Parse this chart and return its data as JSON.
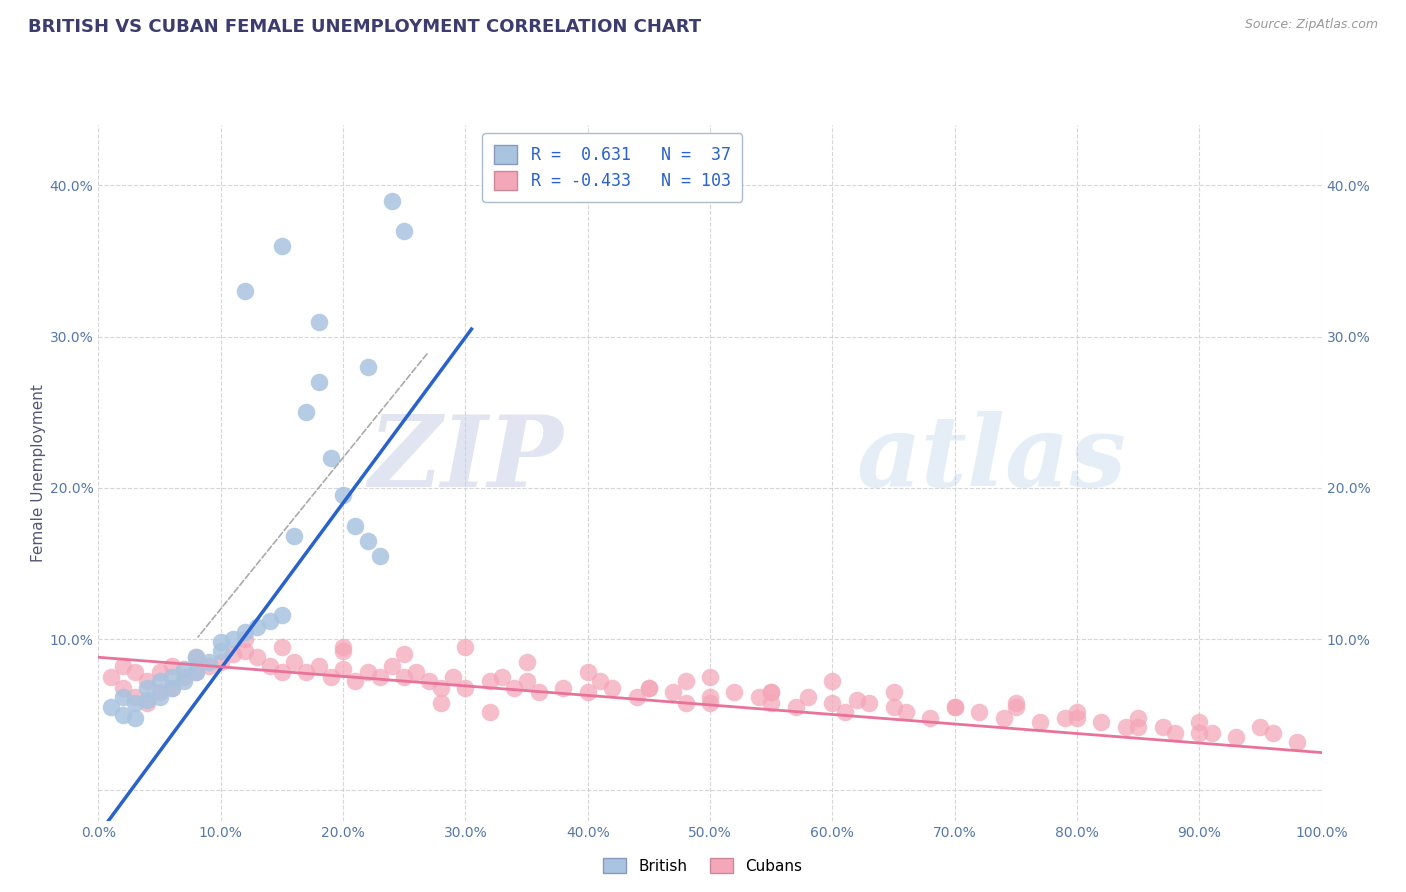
{
  "title": "BRITISH VS CUBAN FEMALE UNEMPLOYMENT CORRELATION CHART",
  "source": "Source: ZipAtlas.com",
  "ylabel": "Female Unemployment",
  "xlim": [
    0.0,
    1.0
  ],
  "ylim": [
    -0.02,
    0.44
  ],
  "x_ticks": [
    0.0,
    0.1,
    0.2,
    0.3,
    0.4,
    0.5,
    0.6,
    0.7,
    0.8,
    0.9,
    1.0
  ],
  "x_tick_labels": [
    "0.0%",
    "10.0%",
    "20.0%",
    "30.0%",
    "40.0%",
    "50.0%",
    "60.0%",
    "70.0%",
    "80.0%",
    "90.0%",
    "100.0%"
  ],
  "y_ticks": [
    0.0,
    0.1,
    0.2,
    0.3,
    0.4
  ],
  "y_tick_labels": [
    "",
    "10.0%",
    "20.0%",
    "30.0%",
    "40.0%"
  ],
  "british_R": 0.631,
  "british_N": 37,
  "cuban_R": -0.433,
  "cuban_N": 103,
  "british_color": "#a8c4e0",
  "cuban_color": "#f4a7b9",
  "british_line_color": "#2962cc",
  "cuban_line_color": "#e8729a",
  "background_color": "#ffffff",
  "grid_color": "#cccccc",
  "title_color": "#3c3c6e",
  "source_color": "#999999",
  "watermark_zip": "ZIP",
  "watermark_atlas": "atlas",
  "legend_british_label": "British",
  "legend_cuban_label": "Cubans",
  "british_x": [
    0.01,
    0.02,
    0.02,
    0.03,
    0.03,
    0.04,
    0.04,
    0.05,
    0.05,
    0.06,
    0.06,
    0.07,
    0.07,
    0.08,
    0.08,
    0.09,
    0.1,
    0.1,
    0.11,
    0.12,
    0.13,
    0.14,
    0.15,
    0.16,
    0.17,
    0.18,
    0.19,
    0.2,
    0.21,
    0.22,
    0.23,
    0.24,
    0.25,
    0.12,
    0.15,
    0.18,
    0.22
  ],
  "british_y": [
    0.055,
    0.05,
    0.062,
    0.048,
    0.058,
    0.06,
    0.068,
    0.062,
    0.072,
    0.068,
    0.075,
    0.072,
    0.08,
    0.078,
    0.088,
    0.085,
    0.092,
    0.098,
    0.1,
    0.105,
    0.108,
    0.112,
    0.116,
    0.168,
    0.25,
    0.27,
    0.22,
    0.195,
    0.175,
    0.165,
    0.155,
    0.39,
    0.37,
    0.33,
    0.36,
    0.31,
    0.28
  ],
  "cuban_x": [
    0.01,
    0.02,
    0.02,
    0.03,
    0.03,
    0.04,
    0.04,
    0.05,
    0.05,
    0.06,
    0.06,
    0.07,
    0.08,
    0.08,
    0.09,
    0.1,
    0.11,
    0.12,
    0.13,
    0.14,
    0.15,
    0.15,
    0.16,
    0.17,
    0.18,
    0.19,
    0.2,
    0.2,
    0.21,
    0.22,
    0.23,
    0.24,
    0.25,
    0.26,
    0.27,
    0.28,
    0.29,
    0.3,
    0.3,
    0.32,
    0.33,
    0.34,
    0.35,
    0.36,
    0.38,
    0.4,
    0.41,
    0.42,
    0.44,
    0.45,
    0.47,
    0.48,
    0.5,
    0.5,
    0.52,
    0.54,
    0.55,
    0.57,
    0.58,
    0.6,
    0.61,
    0.63,
    0.65,
    0.66,
    0.68,
    0.7,
    0.72,
    0.74,
    0.75,
    0.77,
    0.79,
    0.8,
    0.82,
    0.84,
    0.85,
    0.87,
    0.88,
    0.9,
    0.91,
    0.93,
    0.95,
    0.96,
    0.98,
    0.28,
    0.32,
    0.45,
    0.5,
    0.55,
    0.6,
    0.65,
    0.7,
    0.75,
    0.8,
    0.85,
    0.9,
    0.12,
    0.2,
    0.25,
    0.35,
    0.4,
    0.48,
    0.55,
    0.62
  ],
  "cuban_y": [
    0.075,
    0.068,
    0.082,
    0.062,
    0.078,
    0.058,
    0.072,
    0.065,
    0.078,
    0.068,
    0.082,
    0.075,
    0.088,
    0.078,
    0.082,
    0.085,
    0.09,
    0.092,
    0.088,
    0.082,
    0.078,
    0.095,
    0.085,
    0.078,
    0.082,
    0.075,
    0.08,
    0.092,
    0.072,
    0.078,
    0.075,
    0.082,
    0.075,
    0.078,
    0.072,
    0.068,
    0.075,
    0.068,
    0.095,
    0.072,
    0.075,
    0.068,
    0.072,
    0.065,
    0.068,
    0.065,
    0.072,
    0.068,
    0.062,
    0.068,
    0.065,
    0.058,
    0.062,
    0.058,
    0.065,
    0.062,
    0.058,
    0.055,
    0.062,
    0.058,
    0.052,
    0.058,
    0.055,
    0.052,
    0.048,
    0.055,
    0.052,
    0.048,
    0.055,
    0.045,
    0.048,
    0.052,
    0.045,
    0.042,
    0.048,
    0.042,
    0.038,
    0.045,
    0.038,
    0.035,
    0.042,
    0.038,
    0.032,
    0.058,
    0.052,
    0.068,
    0.075,
    0.065,
    0.072,
    0.065,
    0.055,
    0.058,
    0.048,
    0.042,
    0.038,
    0.1,
    0.095,
    0.09,
    0.085,
    0.078,
    0.072,
    0.065,
    0.06
  ]
}
